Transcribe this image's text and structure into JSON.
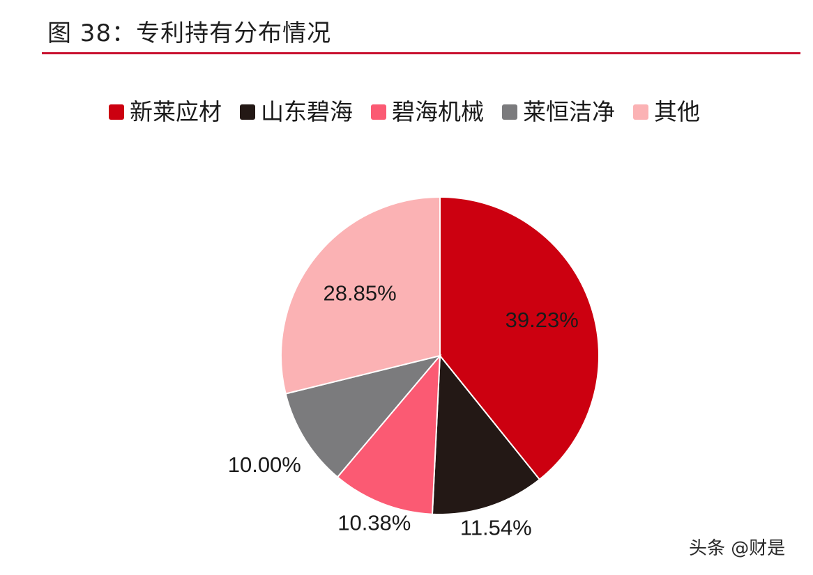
{
  "title": "图 38：专利持有分布情况",
  "watermark": "头条 @财是",
  "colors": {
    "title_rule": "#c8102e"
  },
  "chart_data": {
    "type": "pie",
    "start": "12 o'clock",
    "direction": "clockwise",
    "legend_position": "top",
    "slices": [
      {
        "name": "新莱应材",
        "value": 39.23,
        "label": "39.23%",
        "color": "#cc0010"
      },
      {
        "name": "山东碧海",
        "value": 11.54,
        "label": "11.54%",
        "color": "#231815"
      },
      {
        "name": "碧海机械",
        "value": 10.38,
        "label": "10.38%",
        "color": "#fb5a73"
      },
      {
        "name": "莱恒洁净",
        "value": 10.0,
        "label": "10.00%",
        "color": "#7b7b7d"
      },
      {
        "name": "其他",
        "value": 28.85,
        "label": "28.85%",
        "color": "#fbb2b4"
      }
    ]
  }
}
